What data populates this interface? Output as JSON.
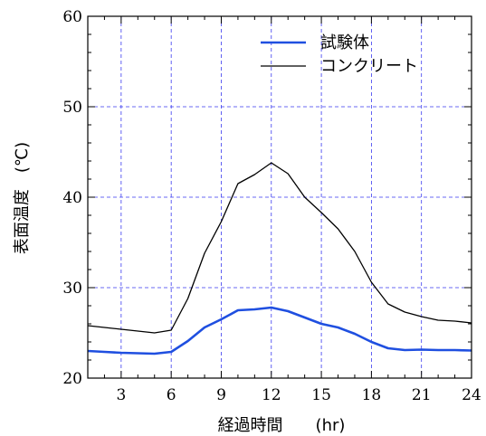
{
  "chart_data": {
    "type": "line",
    "title": "",
    "xlabel": "経過時間　　(hr)",
    "ylabel": "表面温度　(℃)",
    "xlim": [
      1,
      24
    ],
    "ylim": [
      20,
      60
    ],
    "xticks": [
      3,
      6,
      9,
      12,
      15,
      18,
      21,
      24
    ],
    "yticks": [
      20,
      30,
      40,
      50,
      60
    ],
    "grid": true,
    "legend_position": "top-right",
    "series": [
      {
        "name": "試験体",
        "color": "#1f4fe0",
        "x": [
          1,
          2,
          3,
          4,
          5,
          6,
          7,
          8,
          9,
          10,
          11,
          12,
          13,
          14,
          15,
          16,
          17,
          18,
          19,
          20,
          21,
          22,
          23,
          24
        ],
        "y": [
          23.0,
          22.9,
          22.8,
          22.75,
          22.7,
          22.9,
          24.1,
          25.6,
          26.5,
          27.5,
          27.6,
          27.8,
          27.4,
          26.7,
          26.0,
          25.6,
          24.9,
          24.0,
          23.3,
          23.1,
          23.15,
          23.1,
          23.1,
          23.05
        ]
      },
      {
        "name": "コンクリート",
        "color": "#000000",
        "x": [
          1,
          2,
          3,
          4,
          5,
          6,
          7,
          8,
          9,
          10,
          11,
          12,
          13,
          14,
          15,
          16,
          17,
          18,
          19,
          20,
          21,
          22,
          23,
          24
        ],
        "y": [
          25.8,
          25.6,
          25.4,
          25.2,
          25.0,
          25.3,
          28.8,
          33.8,
          37.3,
          41.5,
          42.5,
          43.8,
          42.6,
          40.0,
          38.3,
          36.5,
          34.0,
          30.6,
          28.2,
          27.3,
          26.8,
          26.4,
          26.3,
          26.1
        ]
      }
    ]
  }
}
